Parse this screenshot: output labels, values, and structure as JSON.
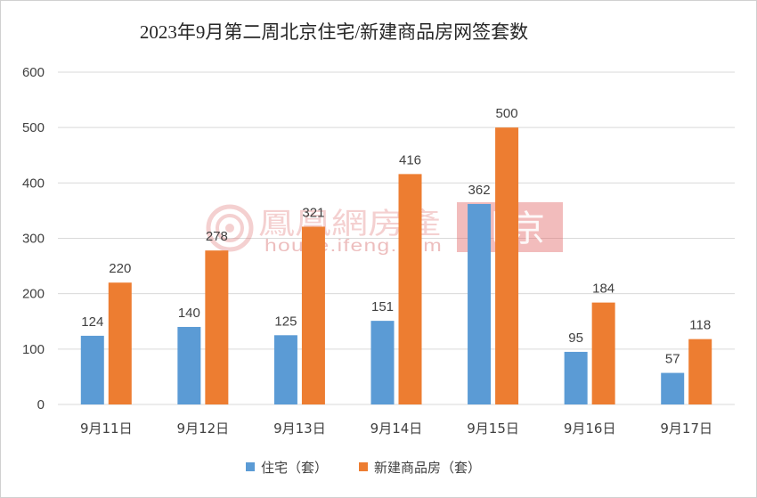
{
  "chart_data": {
    "type": "bar",
    "title": "2023年9月第二周北京住宅/新建商品房网签套数",
    "categories": [
      "9月11日",
      "9月12日",
      "9月13日",
      "9月14日",
      "9月15日",
      "9月16日",
      "9月17日"
    ],
    "series": [
      {
        "name": "住宅（套）",
        "color": "#5b9bd5",
        "values": [
          124,
          140,
          125,
          151,
          362,
          95,
          57
        ]
      },
      {
        "name": "新建商品房（套）",
        "color": "#ed7d31",
        "values": [
          220,
          278,
          321,
          416,
          500,
          184,
          118
        ]
      }
    ],
    "ylim": [
      0,
      600
    ],
    "yticks": [
      "0",
      "100",
      "200",
      "300",
      "400",
      "500",
      "600"
    ],
    "grid": true,
    "legend": "bottom",
    "data_labels": true
  },
  "watermark": {
    "brand": "鳳凰網房產",
    "site": "house.ifeng.com",
    "city": "北京",
    "icon": "ifeng-logo-icon"
  }
}
